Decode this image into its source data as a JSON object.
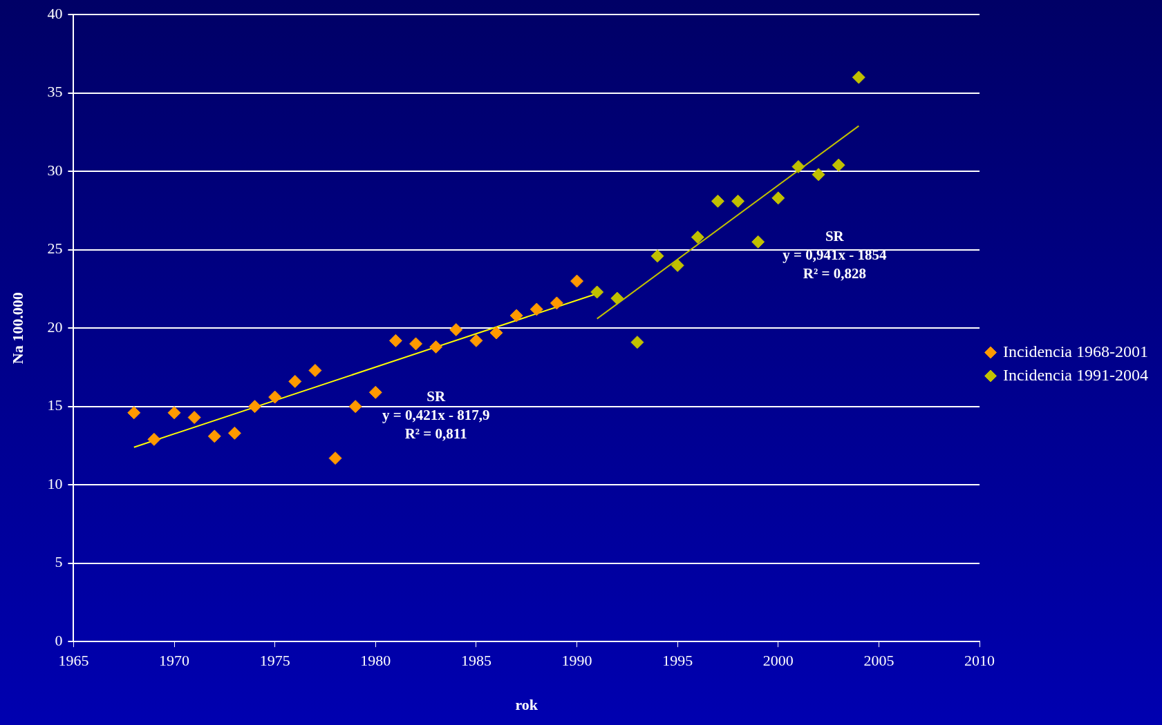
{
  "chart_data": {
    "type": "scatter",
    "xlabel": "rok",
    "ylabel": "Na 100.000",
    "xlim": [
      1965,
      2010
    ],
    "xticks": [
      1965,
      1970,
      1975,
      1980,
      1985,
      1990,
      1995,
      2000,
      2005,
      2010
    ],
    "ylim": [
      0,
      40
    ],
    "yticks": [
      0,
      5,
      10,
      15,
      20,
      25,
      30,
      35,
      40
    ],
    "grid": "y",
    "legend": "right",
    "series": [
      {
        "name": "Incidencia 1968-2001",
        "color": "#ff9900",
        "marker": "diamond",
        "x": [
          1968,
          1969,
          1970,
          1971,
          1972,
          1973,
          1974,
          1975,
          1976,
          1977,
          1978,
          1979,
          1980,
          1981,
          1982,
          1983,
          1984,
          1985,
          1986,
          1987,
          1988,
          1989,
          1990
        ],
        "values": [
          14.6,
          12.9,
          14.6,
          14.3,
          13.1,
          13.3,
          15.0,
          15.6,
          16.6,
          17.3,
          11.7,
          15.0,
          15.9,
          19.2,
          19.0,
          18.8,
          19.9,
          19.2,
          19.7,
          20.8,
          21.2,
          21.6,
          23.0
        ]
      },
      {
        "name": "Incidencia 1991-2004",
        "color": "#c0c000",
        "marker": "diamond",
        "x": [
          1991,
          1992,
          1993,
          1994,
          1995,
          1996,
          1997,
          1998,
          1999,
          2000,
          2001,
          2002,
          2003,
          2004
        ],
        "values": [
          22.3,
          21.9,
          19.1,
          24.6,
          24.0,
          25.8,
          28.1,
          28.1,
          25.5,
          28.3,
          30.3,
          29.8,
          30.4,
          36.0
        ]
      },
      {
        "type": "line",
        "color": "#ffff00",
        "marker": "none",
        "x": [
          1968,
          1991
        ],
        "values": [
          12.4,
          22.2
        ]
      },
      {
        "type": "line",
        "color": "#c0c000",
        "marker": "none",
        "x": [
          1991,
          2004
        ],
        "values": [
          20.6,
          32.9
        ]
      }
    ],
    "annotations": [
      "SR\ny = 0,421x - 817,9\nR² = 0,811",
      "SR\ny = 0,941x - 1854\nR² = 0,828"
    ]
  }
}
